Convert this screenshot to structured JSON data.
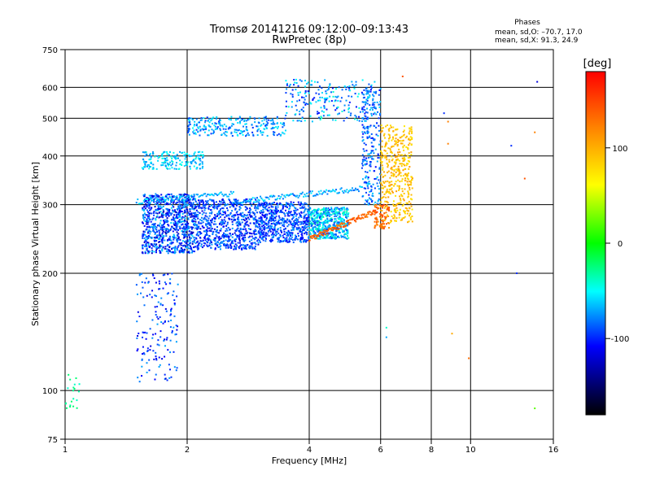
{
  "chart_data": {
    "type": "scatter",
    "title": "Tromsø 20141216 09:12:00–09:13:43",
    "subtitle": "RwPretec (8p)",
    "xlabel": "Frequency [MHz]",
    "ylabel": "Stationary phase Virtual Height [km]",
    "x_scale": "log",
    "y_scale": "log",
    "xlim": [
      1,
      16
    ],
    "ylim": [
      75,
      750
    ],
    "grid": true,
    "x_ticks": [
      1,
      2,
      4,
      6,
      8,
      10,
      16
    ],
    "y_ticks": [
      75,
      100,
      200,
      300,
      400,
      500,
      600,
      750
    ],
    "stats": {
      "header": "Phases",
      "line_o": "mean, sd,O: –70.7, 17.0",
      "line_x": "mean, sd,X:  91.3, 24.9"
    },
    "colorbar": {
      "label": "[deg]",
      "range": [
        -180,
        180
      ],
      "ticks": [
        100,
        0,
        -100
      ],
      "colors": [
        "#ff0000",
        "#ff8000",
        "#ffff00",
        "#00ff00",
        "#00ffff",
        "#0000ff",
        "#000000"
      ]
    },
    "clusters": [
      {
        "x": [
          1.55,
          2.1
        ],
        "y": [
          225,
          320
        ],
        "phase": [
          -130,
          -60
        ],
        "n": 900
      },
      {
        "x": [
          2.1,
          3.0
        ],
        "y": [
          230,
          310
        ],
        "phase": [
          -120,
          -70
        ],
        "n": 700
      },
      {
        "x": [
          3.0,
          4.0
        ],
        "y": [
          240,
          305
        ],
        "phase": [
          -115,
          -70
        ],
        "n": 600
      },
      {
        "x": [
          4.0,
          5.0
        ],
        "y": [
          245,
          295
        ],
        "phase": [
          -100,
          -30
        ],
        "n": 500
      },
      {
        "x": [
          1.55,
          2.2
        ],
        "y": [
          370,
          410
        ],
        "phase": [
          -80,
          -40
        ],
        "n": 180
      },
      {
        "x": [
          2.0,
          3.5
        ],
        "y": [
          450,
          505
        ],
        "phase": [
          -100,
          -50
        ],
        "n": 260
      },
      {
        "x": [
          3.5,
          5.7
        ],
        "y": [
          490,
          630
        ],
        "phase": [
          -110,
          -40
        ],
        "n": 220
      },
      {
        "x": [
          5.4,
          6.0
        ],
        "y": [
          300,
          600
        ],
        "phase": [
          -110,
          -60
        ],
        "n": 240
      },
      {
        "x": [
          6.0,
          7.2
        ],
        "y": [
          270,
          480
        ],
        "phase": [
          70,
          110
        ],
        "n": 420
      },
      {
        "x": [
          5.8,
          6.3
        ],
        "y": [
          260,
          300
        ],
        "phase": [
          110,
          150
        ],
        "n": 80
      },
      {
        "x": [
          1.5,
          1.9
        ],
        "y": [
          105,
          200
        ],
        "phase": [
          -120,
          -70
        ],
        "n": 160
      },
      {
        "x": [
          1.0,
          1.1
        ],
        "y": [
          90,
          110
        ],
        "phase": [
          -40,
          -20
        ],
        "n": 20
      }
    ],
    "trails": [
      {
        "x": [
          4.0,
          5.9
        ],
        "y": [
          245,
          290
        ],
        "phase": [
          120,
          150
        ],
        "n": 120
      },
      {
        "x": [
          1.5,
          2.6
        ],
        "y": [
          305,
          320
        ],
        "phase": [
          -80,
          -50
        ],
        "n": 80
      },
      {
        "x": [
          2.6,
          5.4
        ],
        "y": [
          305,
          330
        ],
        "phase": [
          -90,
          -50
        ],
        "n": 120
      }
    ],
    "outliers": [
      {
        "x": 8.6,
        "y": 515,
        "phase": -100
      },
      {
        "x": 8.8,
        "y": 490,
        "phase": 120
      },
      {
        "x": 8.8,
        "y": 430,
        "phase": 120
      },
      {
        "x": 9.0,
        "y": 140,
        "phase": 100
      },
      {
        "x": 9.9,
        "y": 121,
        "phase": 130
      },
      {
        "x": 12.6,
        "y": 425,
        "phase": -100
      },
      {
        "x": 13.6,
        "y": 350,
        "phase": 140
      },
      {
        "x": 14.4,
        "y": 460,
        "phase": 120
      },
      {
        "x": 14.4,
        "y": 90,
        "phase": 20
      },
      {
        "x": 14.6,
        "y": 620,
        "phase": -120
      },
      {
        "x": 13.0,
        "y": 200,
        "phase": -100
      },
      {
        "x": 6.2,
        "y": 145,
        "phase": -40
      },
      {
        "x": 6.2,
        "y": 137,
        "phase": -70
      },
      {
        "x": 6.8,
        "y": 640,
        "phase": 140
      },
      {
        "x": 5.8,
        "y": 620,
        "phase": -60
      }
    ]
  }
}
